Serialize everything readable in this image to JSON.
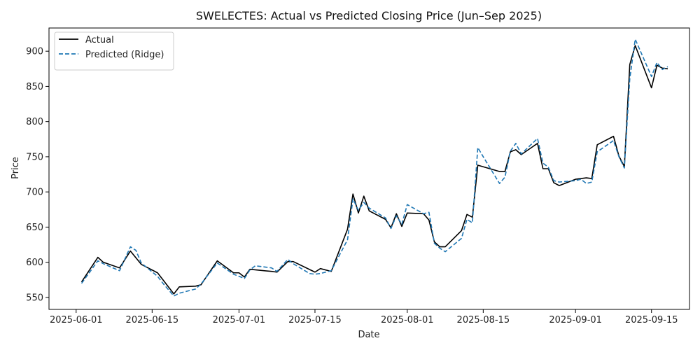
{
  "chart_data": {
    "type": "line",
    "title": "SWELECTES: Actual vs Predicted Closing Price (Jun–Sep 2025)",
    "xlabel": "Date",
    "ylabel": "Price",
    "xlim": [
      "2025-05-27",
      "2025-09-22"
    ],
    "ylim": [
      533,
      933
    ],
    "x_ticks": [
      "2025-06-01",
      "2025-06-15",
      "2025-07-01",
      "2025-07-15",
      "2025-08-01",
      "2025-08-15",
      "2025-09-01",
      "2025-09-15"
    ],
    "y_ticks": [
      550,
      600,
      650,
      700,
      750,
      800,
      850,
      900
    ],
    "grid": false,
    "legend_position": "top-left",
    "series": [
      {
        "name": "Actual",
        "color": "#000000",
        "style": "solid",
        "points": [
          [
            "2025-06-02",
            572
          ],
          [
            "2025-06-05",
            607
          ],
          [
            "2025-06-06",
            600
          ],
          [
            "2025-06-09",
            592
          ],
          [
            "2025-06-11",
            616
          ],
          [
            "2025-06-13",
            597
          ],
          [
            "2025-06-16",
            585
          ],
          [
            "2025-06-17",
            575
          ],
          [
            "2025-06-19",
            555
          ],
          [
            "2025-06-20",
            565
          ],
          [
            "2025-06-23",
            566
          ],
          [
            "2025-06-24",
            568
          ],
          [
            "2025-06-27",
            602
          ],
          [
            "2025-06-30",
            585
          ],
          [
            "2025-07-01",
            585
          ],
          [
            "2025-07-02",
            579
          ],
          [
            "2025-07-03",
            590
          ],
          [
            "2025-07-07",
            587
          ],
          [
            "2025-07-08",
            586
          ],
          [
            "2025-07-10",
            601
          ],
          [
            "2025-07-11",
            601
          ],
          [
            "2025-07-15",
            586
          ],
          [
            "2025-07-16",
            591
          ],
          [
            "2025-07-18",
            587
          ],
          [
            "2025-07-21",
            647
          ],
          [
            "2025-07-22",
            697
          ],
          [
            "2025-07-23",
            670
          ],
          [
            "2025-07-24",
            694
          ],
          [
            "2025-07-25",
            673
          ],
          [
            "2025-07-28",
            661
          ],
          [
            "2025-07-29",
            649
          ],
          [
            "2025-07-30",
            669
          ],
          [
            "2025-07-31",
            651
          ],
          [
            "2025-08-01",
            670
          ],
          [
            "2025-08-04",
            669
          ],
          [
            "2025-08-05",
            660
          ],
          [
            "2025-08-06",
            629
          ],
          [
            "2025-08-07",
            622
          ],
          [
            "2025-08-08",
            622
          ],
          [
            "2025-08-11",
            645
          ],
          [
            "2025-08-12",
            668
          ],
          [
            "2025-08-13",
            664
          ],
          [
            "2025-08-14",
            738
          ],
          [
            "2025-08-18",
            729
          ],
          [
            "2025-08-19",
            729
          ],
          [
            "2025-08-20",
            757
          ],
          [
            "2025-08-21",
            760
          ],
          [
            "2025-08-22",
            753
          ],
          [
            "2025-08-25",
            769
          ],
          [
            "2025-08-26",
            733
          ],
          [
            "2025-08-27",
            733
          ],
          [
            "2025-08-28",
            713
          ],
          [
            "2025-08-29",
            709
          ],
          [
            "2025-09-01",
            718
          ],
          [
            "2025-09-02",
            719
          ],
          [
            "2025-09-03",
            720
          ],
          [
            "2025-09-04",
            719
          ],
          [
            "2025-09-05",
            767
          ],
          [
            "2025-09-08",
            779
          ],
          [
            "2025-09-09",
            751
          ],
          [
            "2025-09-10",
            736
          ],
          [
            "2025-09-11",
            881
          ],
          [
            "2025-09-12",
            908
          ],
          [
            "2025-09-15",
            848
          ],
          [
            "2025-09-16",
            880
          ],
          [
            "2025-09-17",
            876
          ],
          [
            "2025-09-18",
            875
          ]
        ]
      },
      {
        "name": "Predicted (Ridge)",
        "color": "#1f77b4",
        "style": "dashed",
        "points": [
          [
            "2025-06-02",
            570
          ],
          [
            "2025-06-05",
            602
          ],
          [
            "2025-06-06",
            598
          ],
          [
            "2025-06-09",
            588
          ],
          [
            "2025-06-11",
            622
          ],
          [
            "2025-06-12",
            617
          ],
          [
            "2025-06-13",
            599
          ],
          [
            "2025-06-16",
            580
          ],
          [
            "2025-06-17",
            570
          ],
          [
            "2025-06-19",
            552
          ],
          [
            "2025-06-20",
            556
          ],
          [
            "2025-06-23",
            562
          ],
          [
            "2025-06-24",
            569
          ],
          [
            "2025-06-27",
            599
          ],
          [
            "2025-06-30",
            583
          ],
          [
            "2025-07-01",
            580
          ],
          [
            "2025-07-02",
            577
          ],
          [
            "2025-07-03",
            589
          ],
          [
            "2025-07-04",
            595
          ],
          [
            "2025-07-07",
            592
          ],
          [
            "2025-07-08",
            587
          ],
          [
            "2025-07-10",
            604
          ],
          [
            "2025-07-11",
            598
          ],
          [
            "2025-07-14",
            584
          ],
          [
            "2025-07-15",
            583
          ],
          [
            "2025-07-16",
            584
          ],
          [
            "2025-07-18",
            588
          ],
          [
            "2025-07-21",
            632
          ],
          [
            "2025-07-22",
            690
          ],
          [
            "2025-07-23",
            674
          ],
          [
            "2025-07-24",
            685
          ],
          [
            "2025-07-25",
            677
          ],
          [
            "2025-07-28",
            663
          ],
          [
            "2025-07-29",
            648
          ],
          [
            "2025-07-30",
            666
          ],
          [
            "2025-07-31",
            654
          ],
          [
            "2025-08-01",
            682
          ],
          [
            "2025-08-04",
            669
          ],
          [
            "2025-08-05",
            671
          ],
          [
            "2025-08-06",
            627
          ],
          [
            "2025-08-07",
            620
          ],
          [
            "2025-08-08",
            615
          ],
          [
            "2025-08-11",
            634
          ],
          [
            "2025-08-12",
            661
          ],
          [
            "2025-08-13",
            656
          ],
          [
            "2025-08-14",
            763
          ],
          [
            "2025-08-15",
            750
          ],
          [
            "2025-08-18",
            712
          ],
          [
            "2025-08-19",
            721
          ],
          [
            "2025-08-20",
            758
          ],
          [
            "2025-08-21",
            769
          ],
          [
            "2025-08-22",
            754
          ],
          [
            "2025-08-25",
            776
          ],
          [
            "2025-08-26",
            741
          ],
          [
            "2025-08-27",
            735
          ],
          [
            "2025-08-28",
            716
          ],
          [
            "2025-08-29",
            714
          ],
          [
            "2025-09-01",
            716
          ],
          [
            "2025-09-02",
            718
          ],
          [
            "2025-09-03",
            712
          ],
          [
            "2025-09-04",
            714
          ],
          [
            "2025-09-05",
            757
          ],
          [
            "2025-09-08",
            773
          ],
          [
            "2025-09-09",
            750
          ],
          [
            "2025-09-10",
            734
          ],
          [
            "2025-09-11",
            861
          ],
          [
            "2025-09-12",
            917
          ],
          [
            "2025-09-15",
            864
          ],
          [
            "2025-09-16",
            884
          ],
          [
            "2025-09-17",
            874
          ],
          [
            "2025-09-18",
            878
          ]
        ]
      }
    ]
  }
}
